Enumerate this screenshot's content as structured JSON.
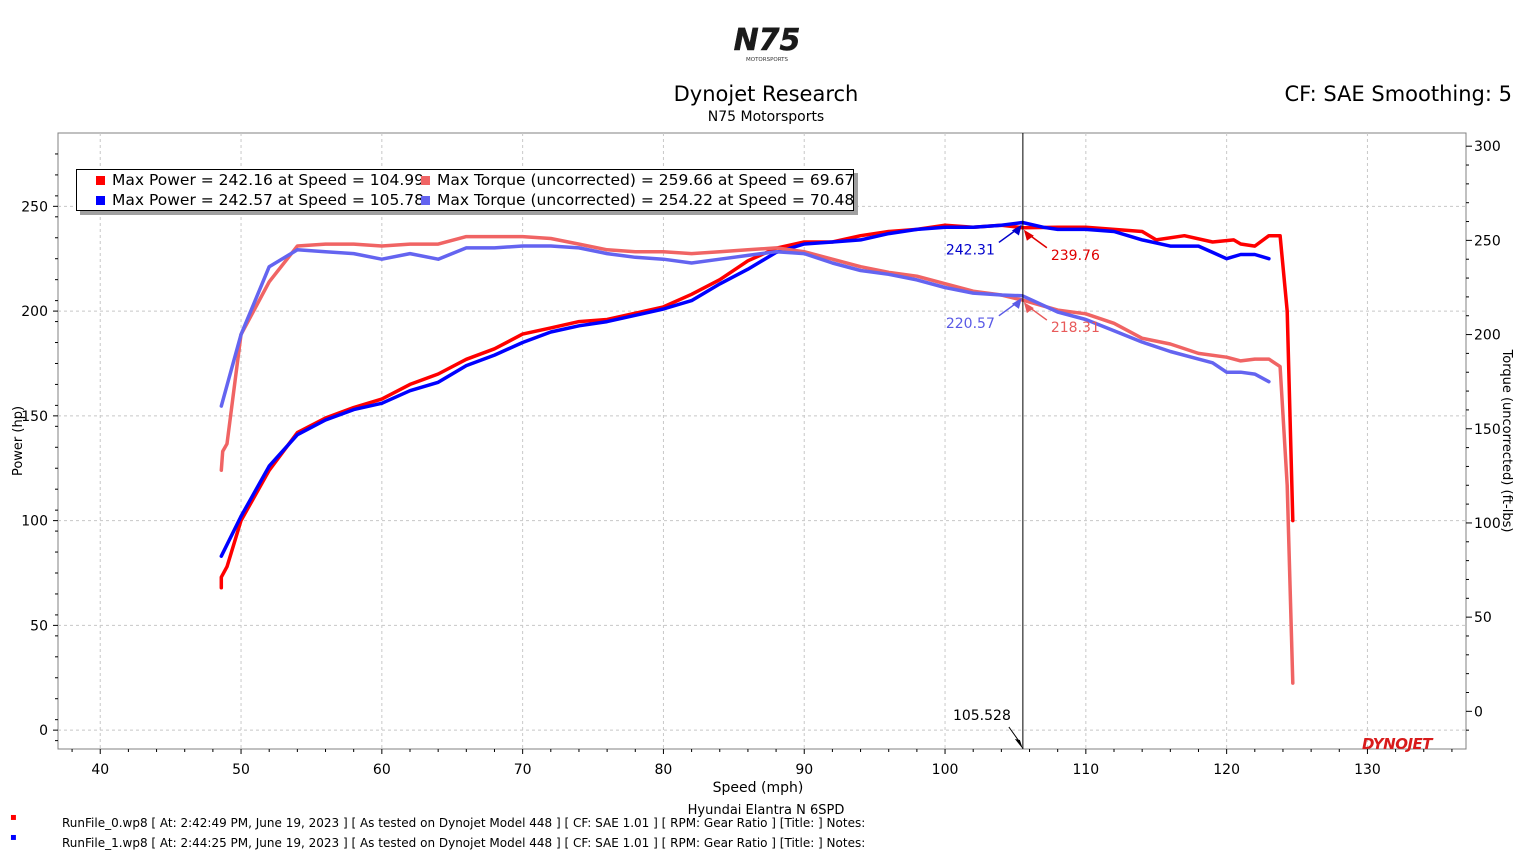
{
  "header": {
    "logo_text": "N75",
    "logo_subtext": "MOTORSPORTS",
    "title": "Dynojet Research",
    "subtitle": "N75 Motorsports",
    "cf_info": "CF: SAE Smoothing: 5"
  },
  "footer": {
    "vehicle": "Hyundai Elantra N 6SPD",
    "runs": [
      {
        "marker": "▪",
        "color": "#ff0000",
        "text": "RunFile_0.wp8 [ At: 2:42:49 PM, June 19, 2023 ] [ As tested on Dynojet Model 448 ] [ CF: SAE 1.01 ] [ RPM: Gear Ratio ] [Title: ]  Notes:"
      },
      {
        "marker": "▪",
        "color": "#0000ff",
        "text": "RunFile_1.wp8 [ At: 2:44:25 PM, June 19, 2023 ] [ As tested on Dynojet Model 448 ] [ CF: SAE 1.01 ] [ RPM: Gear Ratio ] [Title: ]  Notes:"
      }
    ],
    "brand": "DYNOJET"
  },
  "legend": {
    "items": [
      {
        "color": "#ff0000",
        "text": "Max Power = 242.16 at Speed = 104.99"
      },
      {
        "color": "#f06464",
        "text": "Max Torque (uncorrected) = 259.66 at Speed = 69.67"
      },
      {
        "color": "#0000ff",
        "text": "Max Power = 242.57 at Speed = 105.78"
      },
      {
        "color": "#6464f0",
        "text": "Max Torque (uncorrected) = 254.22 at Speed = 70.48"
      }
    ]
  },
  "chart_data": {
    "type": "line",
    "xlabel": "Speed (mph)",
    "ylabel": "Power (hp)",
    "y2label": "Torque (uncorrected) (ft-lbs)",
    "xlim": [
      37,
      137
    ],
    "ylim": [
      -9,
      285
    ],
    "y2lim": [
      -20,
      307
    ],
    "xticks": [
      40,
      50,
      60,
      70,
      80,
      90,
      100,
      110,
      120,
      130
    ],
    "yticks": [
      0,
      50,
      100,
      150,
      200,
      250
    ],
    "y2ticks": [
      0,
      50,
      100,
      150,
      200,
      250,
      300
    ],
    "grid": true,
    "legend_position": "top-left",
    "cursor": {
      "x": 105.528,
      "label": "105.528"
    },
    "cursor_labels": [
      {
        "text": "242.31",
        "color": "#0000cc",
        "axis": "left",
        "value": 242.31,
        "side": "left"
      },
      {
        "text": "239.76",
        "color": "#e00000",
        "axis": "left",
        "value": 239.76,
        "side": "right"
      },
      {
        "text": "220.57",
        "color": "#5a5ae6",
        "axis": "right",
        "value": 220.57,
        "side": "left"
      },
      {
        "text": "218.31",
        "color": "#e85a5a",
        "axis": "right",
        "value": 218.31,
        "side": "right"
      }
    ],
    "series": [
      {
        "name": "Power Run 0",
        "axis": "left",
        "color": "#ff0000",
        "width": 3.5,
        "x": [
          48.6,
          48.6,
          49.0,
          50.0,
          52.0,
          54.0,
          56.0,
          58.0,
          60.0,
          62.0,
          64.0,
          66.0,
          68.0,
          70.0,
          72.0,
          74.0,
          76.0,
          78.0,
          80.0,
          82.0,
          84.0,
          86.0,
          88.0,
          90.0,
          92.0,
          94.0,
          96.0,
          98.0,
          100.0,
          102.0,
          104.0,
          105.5,
          108.0,
          110.0,
          112.0,
          114.0,
          115.0,
          117.0,
          119.0,
          120.5,
          121.0,
          122.0,
          123.0,
          123.8,
          124.3,
          124.7
        ],
        "values": [
          68,
          73,
          78,
          100,
          124,
          142,
          149,
          154,
          158,
          165,
          170,
          177,
          182,
          189,
          192,
          195,
          196,
          199,
          202,
          208,
          215,
          224,
          230,
          233,
          233,
          236,
          238,
          239,
          241,
          240,
          241,
          239.8,
          240,
          240,
          239,
          238,
          234,
          236,
          233,
          234,
          232,
          231,
          236,
          236,
          200,
          100
        ]
      },
      {
        "name": "Power Run 1",
        "axis": "left",
        "color": "#0000ff",
        "width": 3.5,
        "x": [
          48.6,
          50.0,
          52.0,
          54.0,
          56.0,
          58.0,
          60.0,
          62.0,
          64.0,
          66.0,
          68.0,
          70.0,
          72.0,
          74.0,
          76.0,
          78.0,
          80.0,
          82.0,
          84.0,
          86.0,
          88.0,
          90.0,
          92.0,
          94.0,
          96.0,
          98.0,
          100.0,
          102.0,
          104.0,
          105.5,
          107.0,
          108.0,
          110.0,
          112.0,
          113.0,
          114.0,
          116.0,
          118.0,
          119.0,
          120.0,
          121.0,
          122.0,
          123.0
        ],
        "values": [
          83,
          102,
          126,
          141,
          148,
          153,
          156,
          162,
          166,
          174,
          179,
          185,
          190,
          193,
          195,
          198,
          201,
          205,
          213,
          220,
          228,
          232,
          233,
          234,
          237,
          239,
          240,
          240,
          241,
          242.3,
          240,
          239,
          239,
          238,
          236,
          234,
          231,
          231,
          228,
          225,
          227,
          227,
          225
        ]
      },
      {
        "name": "Torque Run 0",
        "axis": "right",
        "color": "#f06464",
        "width": 3.5,
        "x": [
          48.6,
          48.7,
          49.0,
          50.0,
          52.0,
          54.0,
          56.0,
          58.0,
          60.0,
          62.0,
          64.0,
          66.0,
          68.0,
          70.0,
          72.0,
          74.0,
          76.0,
          78.0,
          80.0,
          82.0,
          84.0,
          86.0,
          88.0,
          90.0,
          92.0,
          94.0,
          96.0,
          98.0,
          100.0,
          102.0,
          104.0,
          105.5,
          108.0,
          110.0,
          112.0,
          114.0,
          116.0,
          118.0,
          120.0,
          121.0,
          122.0,
          123.0,
          123.8,
          124.3,
          124.7
        ],
        "values": [
          128,
          138,
          142,
          200,
          228,
          247,
          248,
          248,
          247,
          248,
          248,
          252,
          252,
          252,
          251,
          248,
          245,
          244,
          244,
          243,
          244,
          245,
          246,
          244,
          240,
          236,
          233,
          231,
          227,
          223,
          221,
          218.3,
          213,
          211,
          206,
          198,
          195,
          190,
          188,
          186,
          187,
          187,
          183,
          120,
          15
        ]
      },
      {
        "name": "Torque Run 1",
        "axis": "right",
        "color": "#6464f0",
        "width": 3.5,
        "x": [
          48.6,
          50.0,
          52.0,
          54.0,
          56.0,
          58.0,
          60.0,
          62.0,
          64.0,
          66.0,
          68.0,
          70.0,
          72.0,
          74.0,
          76.0,
          78.0,
          80.0,
          82.0,
          84.0,
          86.0,
          88.0,
          90.0,
          92.0,
          94.0,
          96.0,
          98.0,
          100.0,
          102.0,
          104.0,
          105.5,
          108.0,
          110.0,
          112.0,
          114.0,
          116.0,
          118.0,
          119.0,
          120.0,
          121.0,
          122.0,
          123.0
        ],
        "values": [
          162,
          200,
          236,
          245,
          244,
          243,
          240,
          243,
          240,
          246,
          246,
          247,
          247,
          246,
          243,
          241,
          240,
          238,
          240,
          242,
          244,
          243,
          238,
          234,
          232,
          229,
          225,
          222,
          221,
          220.6,
          212,
          208,
          202,
          196,
          191,
          187,
          185,
          180,
          180,
          179,
          175
        ]
      }
    ]
  }
}
